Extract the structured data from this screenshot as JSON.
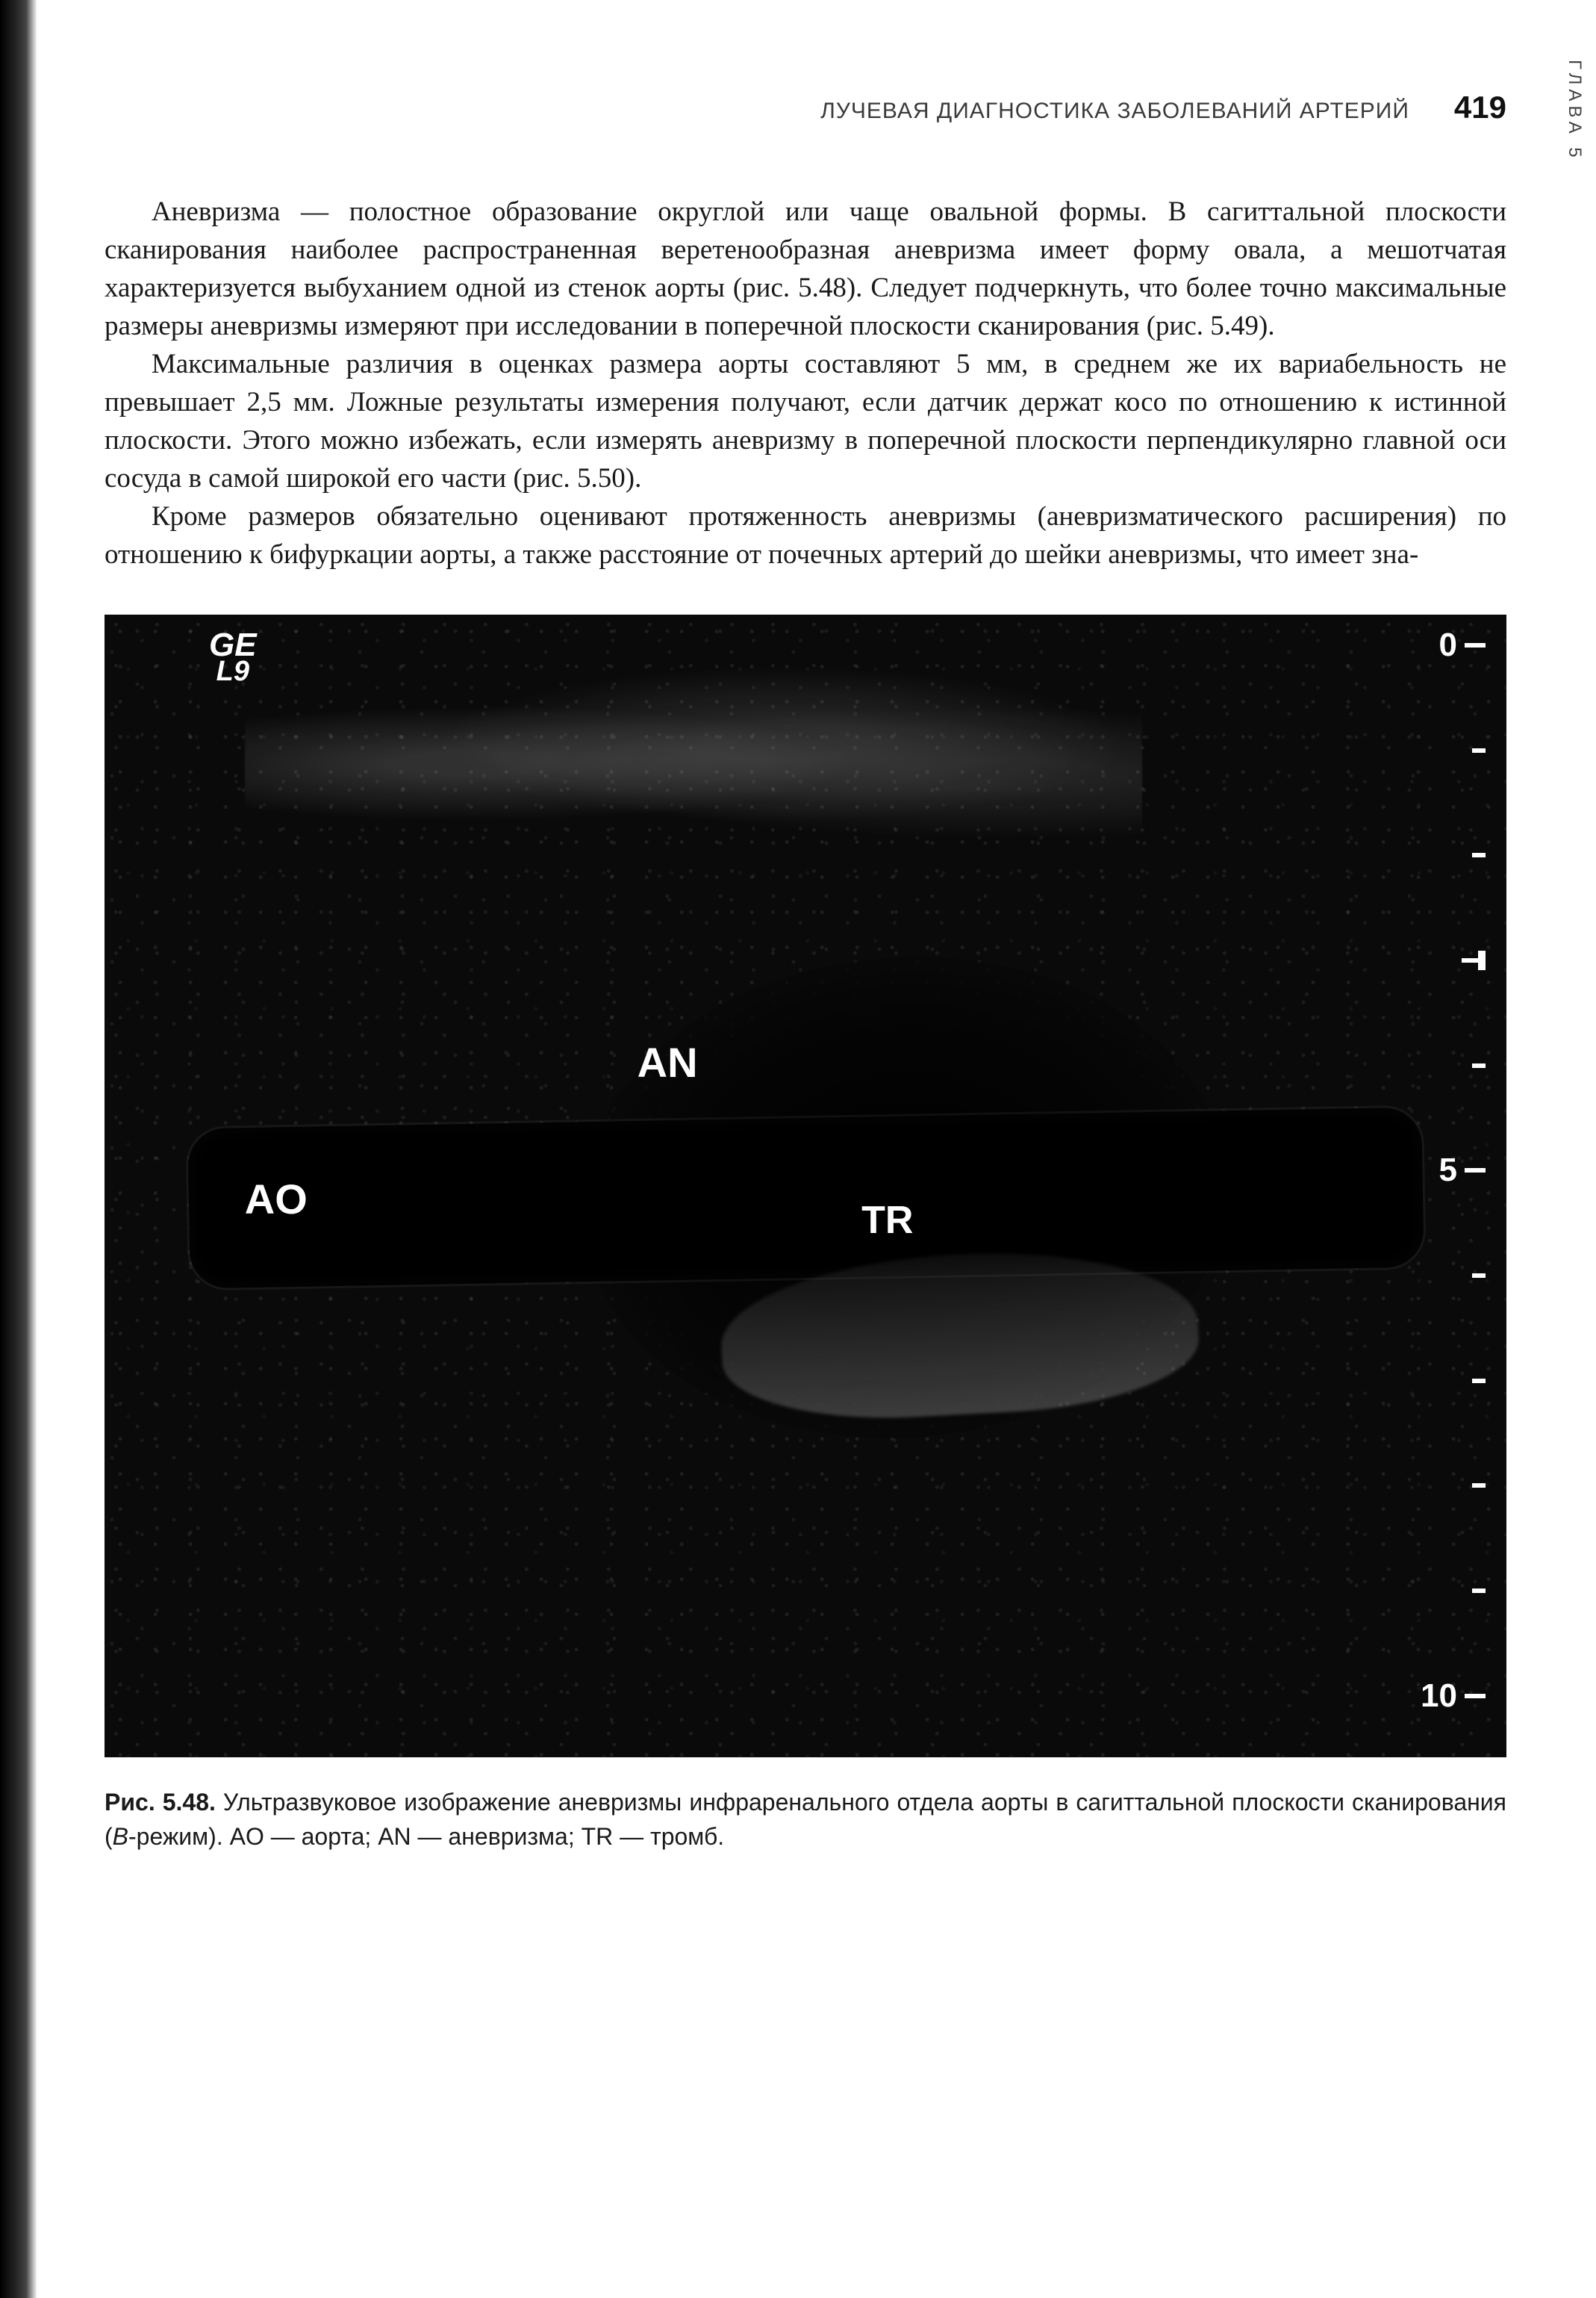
{
  "running_head": "ЛУЧЕВАЯ ДИАГНОСТИКА ЗАБОЛЕВАНИЙ АРТЕРИЙ",
  "page_number": "419",
  "side_tab": "ГЛАВА 5",
  "paragraphs": {
    "p1": "Аневризма — полостное образование округлой или чаще овальной формы. В сагиттальной плоскости сканирования наиболее распространенная веретенообразная аневризма имеет форму овала, а мешотчатая характеризуется выбуханием одной из стенок аорты (рис. 5.48). Следует подчеркнуть, что более точно максимальные размеры аневризмы измеряют при исследовании в поперечной плоскости сканирования (рис. 5.49).",
    "p2": "Максимальные различия в оценках размера аорты составляют 5 мм, в среднем же их вариабельность не превышает 2,5 мм. Ложные результаты измерения получают, если датчик держат косо по отношению к истинной плоскости. Этого можно избежать, если измерять аневризму в поперечной плоскости перпендикулярно главной оси сосуда в самой широкой его части (рис. 5.50).",
    "p3": "Кроме размеров обязательно оценивают протяженность аневризмы (аневризматического расширения) по отношению к бифуркации аорты, а также расстояние от почечных артерий до шейки аневризмы, что имеет зна-"
  },
  "figure": {
    "device_top": "GE",
    "device_sub": "L9",
    "labels": {
      "an": "AN",
      "ao": "AO",
      "tr": "TR"
    },
    "scale": {
      "t0": "0",
      "t5": "5",
      "t10": "10"
    },
    "colors": {
      "bg": "#0a0a0a",
      "text": "#ffffff"
    },
    "caption_label": "Рис. 5.48.",
    "caption_lead": " Ультразвуковое изображение аневризмы инфраренального отдела аорты в сагиттальной плоскости сканирования (",
    "caption_mode": "B",
    "caption_tail": "-режим). AO — аорта; AN — аневризма; TR — тромб."
  }
}
